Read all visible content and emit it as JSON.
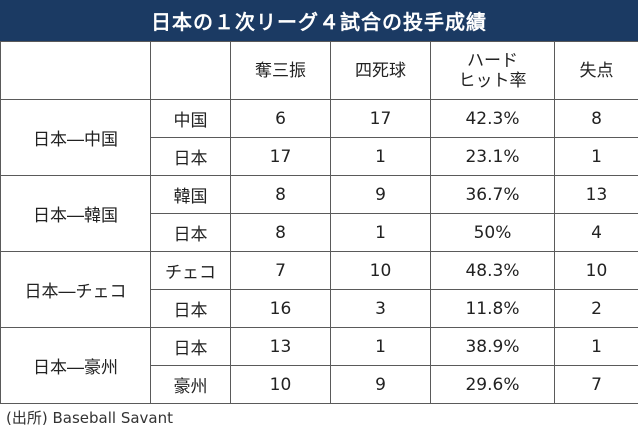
{
  "title": "日本の１次リーグ４試合の投手成績",
  "columns": [
    "",
    "",
    "奪三振",
    "四死球",
    "ハード\nヒット率",
    "失点"
  ],
  "matchups": [
    {
      "label": "日本―中国",
      "rows": [
        {
          "team": "中国",
          "strikeouts": "6",
          "walks": "17",
          "hard_hit": "42.3%",
          "runs": "8"
        },
        {
          "team": "日本",
          "strikeouts": "17",
          "walks": "1",
          "hard_hit": "23.1%",
          "runs": "1"
        }
      ]
    },
    {
      "label": "日本―韓国",
      "rows": [
        {
          "team": "韓国",
          "strikeouts": "8",
          "walks": "9",
          "hard_hit": "36.7%",
          "runs": "13"
        },
        {
          "team": "日本",
          "strikeouts": "8",
          "walks": "1",
          "hard_hit": "50%",
          "runs": "4"
        }
      ]
    },
    {
      "label": "日本―チェコ",
      "rows": [
        {
          "team": "チェコ",
          "strikeouts": "7",
          "walks": "10",
          "hard_hit": "48.3%",
          "runs": "10"
        },
        {
          "team": "日本",
          "strikeouts": "16",
          "walks": "3",
          "hard_hit": "11.8%",
          "runs": "2"
        }
      ]
    },
    {
      "label": "日本―豪州",
      "rows": [
        {
          "team": "日本",
          "strikeouts": "13",
          "walks": "1",
          "hard_hit": "38.9%",
          "runs": "1"
        },
        {
          "team": "豪州",
          "strikeouts": "10",
          "walks": "9",
          "hard_hit": "29.6%",
          "runs": "7"
        }
      ]
    }
  ],
  "source": "(出所) Baseball Savant",
  "colors": {
    "title_bg": "#1b3a63",
    "title_text": "#ffffff",
    "border": "#5a5a5a"
  }
}
